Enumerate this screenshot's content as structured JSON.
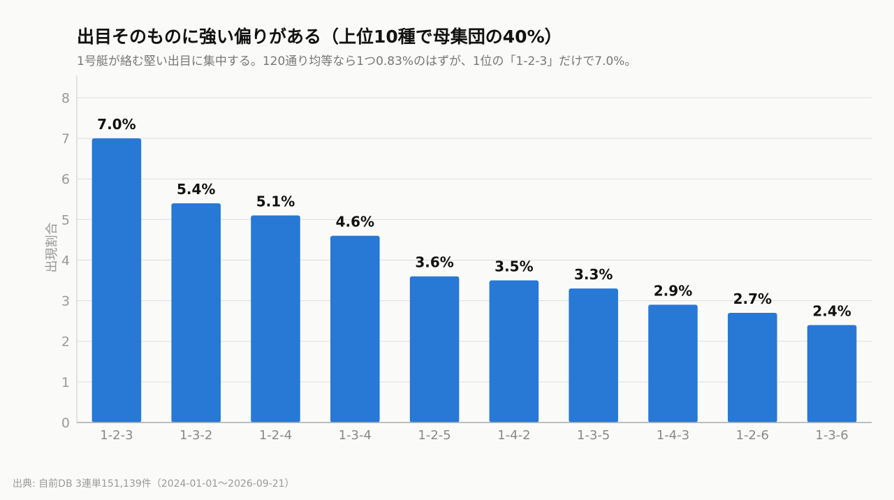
{
  "chart_data": {
    "type": "bar",
    "title": "出目そのものに強い偏りがある（上位10種で母集団の40%）",
    "subtitle": "1号艇が絡む堅い出目に集中する。120通り均等なら1つ0.83%のはずが、1位の「1-2-3」だけで7.0%。",
    "xlabel": "",
    "ylabel": "出現割合",
    "categories": [
      "1-2-3",
      "1-3-2",
      "1-2-4",
      "1-3-4",
      "1-2-5",
      "1-4-2",
      "1-3-5",
      "1-4-3",
      "1-2-6",
      "1-3-6"
    ],
    "values": [
      7.0,
      5.4,
      5.1,
      4.6,
      3.6,
      3.5,
      3.3,
      2.9,
      2.7,
      2.4
    ],
    "value_labels": [
      "7.0%",
      "5.4%",
      "5.1%",
      "4.6%",
      "3.6%",
      "3.5%",
      "3.3%",
      "2.9%",
      "2.7%",
      "2.4%"
    ],
    "yticks": [
      0,
      1,
      2,
      3,
      4,
      5,
      6,
      7,
      8
    ],
    "ylim": [
      0,
      8.55
    ],
    "grid": true,
    "bar_color": "#2878d6"
  },
  "source": "出典: 自前DB 3連単151,139件（2024-01-01〜2026-09-21）"
}
